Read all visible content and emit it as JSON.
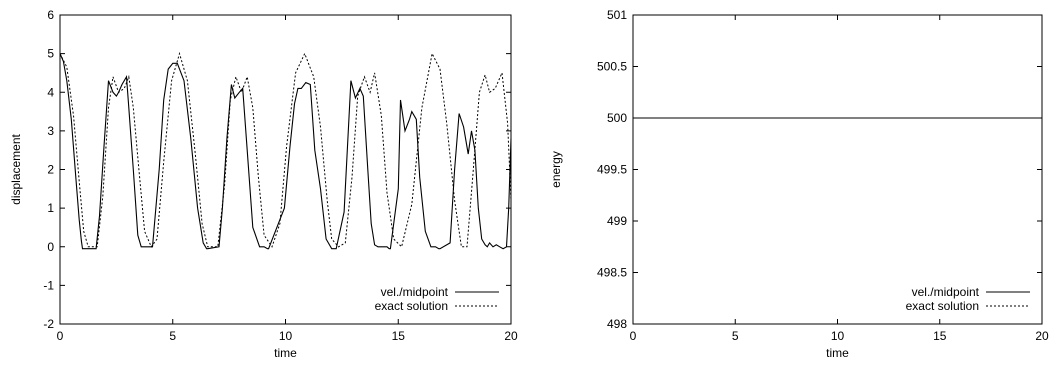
{
  "chart_data": [
    {
      "type": "line",
      "xlabel": "time",
      "ylabel": "displacement",
      "xlim": [
        0,
        20
      ],
      "ylim": [
        -2,
        6
      ],
      "xticks": [
        "0",
        "5",
        "10",
        "15",
        "20"
      ],
      "yticks": [
        "-2",
        "-1",
        "0",
        "1",
        "2",
        "3",
        "4",
        "5",
        "6"
      ],
      "legend_position": "bottom-right",
      "grid": false,
      "series": [
        {
          "name": "vel./midpoint",
          "style": "solid",
          "x": [
            0,
            0.15,
            0.3,
            0.5,
            0.7,
            0.85,
            0.95,
            1.0,
            1.6,
            1.75,
            1.95,
            2.15,
            2.35,
            2.5,
            2.6,
            2.75,
            2.95,
            3.05,
            3.25,
            3.45,
            3.6,
            3.8,
            4.1,
            4.4,
            4.6,
            4.8,
            5.0,
            5.2,
            5.5,
            5.8,
            6.1,
            6.35,
            6.5,
            6.55,
            7.05,
            7.2,
            7.4,
            7.6,
            7.75,
            7.95,
            8.1,
            8.3,
            8.55,
            8.85,
            9.05,
            9.2,
            9.25,
            9.95,
            10.2,
            10.4,
            10.55,
            10.7,
            10.9,
            11.1,
            11.3,
            11.55,
            11.8,
            12.05,
            12.15,
            12.25,
            12.6,
            12.75,
            12.9,
            13.1,
            13.3,
            13.45,
            13.65,
            13.8,
            13.95,
            14.1,
            14.3,
            14.5,
            14.6,
            14.65,
            15.0,
            15.1,
            15.3,
            15.5,
            15.6,
            15.8,
            15.95,
            16.2,
            16.45,
            16.65,
            16.8,
            16.85,
            17.3,
            17.5,
            17.7,
            17.9,
            18.1,
            18.25,
            18.4,
            18.55,
            18.7,
            18.85,
            18.95,
            19.05,
            19.2,
            19.35,
            19.5,
            19.65,
            19.8,
            19.9,
            20.0
          ],
          "values": [
            5.0,
            4.8,
            4.3,
            3.3,
            1.8,
            0.7,
            0.15,
            -0.05,
            -0.05,
            0.8,
            2.6,
            4.3,
            4.0,
            3.9,
            4.0,
            4.2,
            4.4,
            3.6,
            2.0,
            0.3,
            0.0,
            0.0,
            0.0,
            2.0,
            3.8,
            4.6,
            4.75,
            4.75,
            4.3,
            2.8,
            1.0,
            0.1,
            -0.05,
            -0.05,
            0.0,
            1.0,
            2.8,
            4.2,
            3.85,
            4.0,
            4.1,
            2.5,
            0.5,
            0.0,
            0.0,
            -0.05,
            -0.05,
            1.0,
            2.6,
            3.7,
            4.1,
            4.1,
            4.25,
            4.2,
            2.5,
            1.5,
            0.2,
            -0.05,
            -0.05,
            -0.05,
            0.9,
            2.6,
            4.3,
            3.85,
            4.1,
            3.9,
            2.0,
            0.6,
            0.05,
            0.0,
            0.0,
            0.0,
            -0.05,
            -0.05,
            1.5,
            3.8,
            3.0,
            3.3,
            3.5,
            3.3,
            1.8,
            0.4,
            0.0,
            0.0,
            -0.05,
            -0.05,
            0.1,
            2.0,
            3.45,
            3.1,
            2.4,
            3.0,
            2.5,
            1.0,
            0.2,
            0.05,
            0.0,
            0.1,
            0.0,
            0.05,
            0.0,
            -0.05,
            0.0,
            1.0,
            2.8
          ]
        },
        {
          "name": "exact solution",
          "style": "dotted",
          "x": [
            0,
            0.3,
            0.6,
            0.85,
            1.05,
            1.25,
            1.65,
            1.9,
            2.15,
            2.35,
            2.6,
            2.85,
            3.05,
            3.25,
            3.5,
            3.75,
            4.05,
            4.3,
            4.6,
            4.95,
            5.3,
            5.65,
            6.0,
            6.3,
            6.55,
            7.0,
            7.3,
            7.55,
            7.8,
            8.05,
            8.3,
            8.55,
            8.8,
            9.05,
            9.4,
            9.75,
            10.05,
            10.45,
            10.85,
            11.25,
            11.55,
            11.85,
            12.05,
            12.35,
            12.65,
            12.95,
            13.2,
            13.5,
            13.75,
            13.95,
            14.25,
            14.5,
            14.8,
            15.15,
            15.6,
            16.05,
            16.5,
            16.85,
            17.15,
            17.5,
            17.8,
            18.05,
            18.3,
            18.6,
            18.85,
            19.05,
            19.3,
            19.6,
            19.85,
            20.0
          ],
          "values": [
            5.0,
            4.65,
            3.4,
            1.7,
            0.4,
            0.0,
            0.0,
            1.3,
            3.6,
            4.4,
            4.0,
            4.1,
            4.4,
            3.6,
            2.0,
            0.4,
            0.0,
            0.2,
            2.2,
            4.3,
            5.0,
            4.3,
            2.4,
            0.6,
            0.0,
            0.0,
            1.6,
            3.8,
            4.4,
            4.0,
            4.4,
            3.6,
            1.8,
            0.3,
            0.0,
            0.6,
            2.6,
            4.5,
            5.0,
            4.4,
            3.1,
            1.2,
            0.2,
            0.0,
            0.1,
            1.8,
            3.9,
            4.4,
            4.0,
            4.5,
            3.4,
            1.4,
            0.2,
            0.0,
            1.1,
            3.6,
            5.0,
            4.6,
            3.2,
            1.2,
            0.0,
            0.0,
            1.8,
            4.0,
            4.45,
            4.0,
            4.1,
            4.5,
            3.2,
            1.2
          ]
        }
      ]
    },
    {
      "type": "line",
      "xlabel": "time",
      "ylabel": "energy",
      "xlim": [
        0,
        20
      ],
      "ylim": [
        498,
        501
      ],
      "xticks": [
        "0",
        "5",
        "10",
        "15",
        "20"
      ],
      "yticks": [
        "498",
        "498.5",
        "499",
        "499.5",
        "500",
        "500.5",
        "501"
      ],
      "legend_position": "bottom-right",
      "grid": false,
      "series": [
        {
          "name": "vel./midpoint",
          "style": "solid",
          "x": [
            0,
            20
          ],
          "values": [
            500,
            500
          ]
        },
        {
          "name": "exact solution",
          "style": "dotted",
          "x": [
            0,
            20
          ],
          "values": [
            500,
            500
          ]
        }
      ]
    }
  ]
}
